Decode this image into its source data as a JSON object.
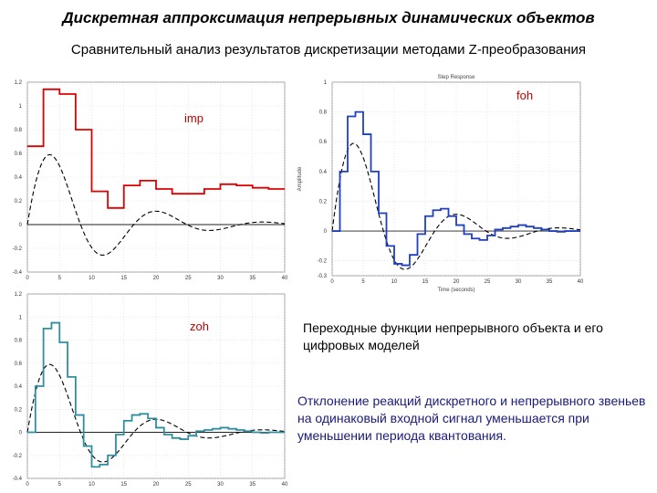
{
  "page": {
    "title": "Дискретная аппроксимация непрерывных динамических объектов",
    "subtitle": "Сравнительный анализ результатов дискретизации методами Z-преобразования",
    "note1": "Переходные функции непрерывного объекта и его цифровых моделей",
    "note2": "Отклонение реакций дискретного и непрерывного звеньев на одинаковый входной сигнал уменьшается при уменьшении периода квантования."
  },
  "chart_data": [
    {
      "type": "line",
      "id": "imp",
      "series_label": "imp",
      "xlim": [
        0,
        40
      ],
      "ylim": [
        -0.4,
        1.2
      ],
      "xticks": [
        0,
        5,
        10,
        15,
        20,
        25,
        30,
        35,
        40
      ],
      "yticks": [
        -0.4,
        -0.2,
        0,
        0.2,
        0.4,
        0.6,
        0.8,
        1,
        1.2
      ],
      "ytick_labels": [
        "-0.4",
        "-0.2",
        "0",
        "0.2",
        "0.4",
        "0.6",
        "0.8",
        "1",
        "1.2"
      ],
      "grid": true,
      "series": [
        {
          "style": "continuous",
          "color": "#000000"
        },
        {
          "style": "step",
          "color": "#e00000",
          "x": [
            0,
            2.5,
            5,
            7.5,
            10,
            12.5,
            15,
            17.5,
            20,
            22.5,
            25,
            27.5,
            30,
            32.5,
            35,
            37.5
          ],
          "y": [
            0.66,
            1.14,
            1.1,
            0.8,
            0.28,
            0.14,
            0.33,
            0.37,
            0.3,
            0.26,
            0.26,
            0.3,
            0.34,
            0.33,
            0.31,
            0.3
          ],
          "x_end": 40
        }
      ]
    },
    {
      "type": "line",
      "id": "foh",
      "series_label": "foh",
      "top_title": "Step Response",
      "xlabel": "Time (seconds)",
      "ylabel": "Amplitude",
      "xlim": [
        0,
        40
      ],
      "ylim": [
        -0.3,
        1
      ],
      "xticks": [
        0,
        5,
        10,
        15,
        20,
        25,
        30,
        35,
        40
      ],
      "yticks": [
        -0.3,
        -0.2,
        0,
        0.2,
        0.4,
        0.6,
        0.8,
        1
      ],
      "ytick_labels": [
        "-0.3",
        "-0.2",
        "0",
        "0.2",
        "0.4",
        "0.6",
        "0.8",
        "1"
      ],
      "grid": true,
      "series": [
        {
          "style": "continuous",
          "color": "#000000"
        },
        {
          "style": "step",
          "color": "#1f3fbf",
          "x": [
            0,
            1.25,
            2.5,
            3.75,
            5,
            6.25,
            7.5,
            8.75,
            10,
            11.25,
            12.5,
            13.75,
            15,
            16.25,
            17.5,
            18.75,
            20,
            21.25,
            22.5,
            23.75,
            25,
            26.25,
            27.5,
            28.75,
            30,
            31.25,
            32.5,
            33.75,
            35,
            36.25,
            37.5,
            38.75
          ],
          "y": [
            0.0,
            0.4,
            0.77,
            0.8,
            0.65,
            0.4,
            0.12,
            -0.1,
            -0.22,
            -0.23,
            -0.16,
            -0.02,
            0.1,
            0.14,
            0.15,
            0.1,
            0.04,
            -0.02,
            -0.05,
            -0.06,
            -0.03,
            0.01,
            0.02,
            0.03,
            0.04,
            0.03,
            0.02,
            0.01,
            0.0,
            -0.005,
            0.0,
            0.0
          ],
          "x_end": 40
        }
      ]
    },
    {
      "type": "line",
      "id": "zoh",
      "series_label": "zoh",
      "xlim": [
        0,
        40
      ],
      "ylim": [
        -0.4,
        1.2
      ],
      "xticks": [
        0,
        5,
        10,
        15,
        20,
        25,
        30,
        35,
        40
      ],
      "yticks": [
        -0.4,
        -0.2,
        0,
        0.2,
        0.4,
        0.6,
        0.8,
        1,
        1.2
      ],
      "ytick_labels": [
        "-0.4",
        "-0.2",
        "0",
        "0.2",
        "0.4",
        "0.6",
        "0.8",
        "1",
        "1.2"
      ],
      "grid": true,
      "series": [
        {
          "style": "continuous",
          "color": "#000000"
        },
        {
          "style": "step",
          "color": "#2f8fa0",
          "x": [
            0,
            1.25,
            2.5,
            3.75,
            5,
            6.25,
            7.5,
            8.75,
            10,
            11.25,
            12.5,
            13.75,
            15,
            16.25,
            17.5,
            18.75,
            20,
            21.25,
            22.5,
            23.75,
            25,
            26.25,
            27.5,
            28.75,
            30,
            31.25,
            32.5,
            33.75,
            35,
            36.25,
            37.5,
            38.75
          ],
          "y": [
            0.0,
            0.4,
            0.9,
            0.95,
            0.78,
            0.48,
            0.15,
            -0.12,
            -0.3,
            -0.28,
            -0.2,
            -0.02,
            0.1,
            0.15,
            0.16,
            0.12,
            0.04,
            -0.02,
            -0.05,
            -0.06,
            -0.03,
            0.01,
            0.02,
            0.03,
            0.04,
            0.03,
            0.02,
            0.01,
            0.0,
            -0.005,
            0.0,
            0.0
          ],
          "x_end": 40
        }
      ]
    }
  ]
}
